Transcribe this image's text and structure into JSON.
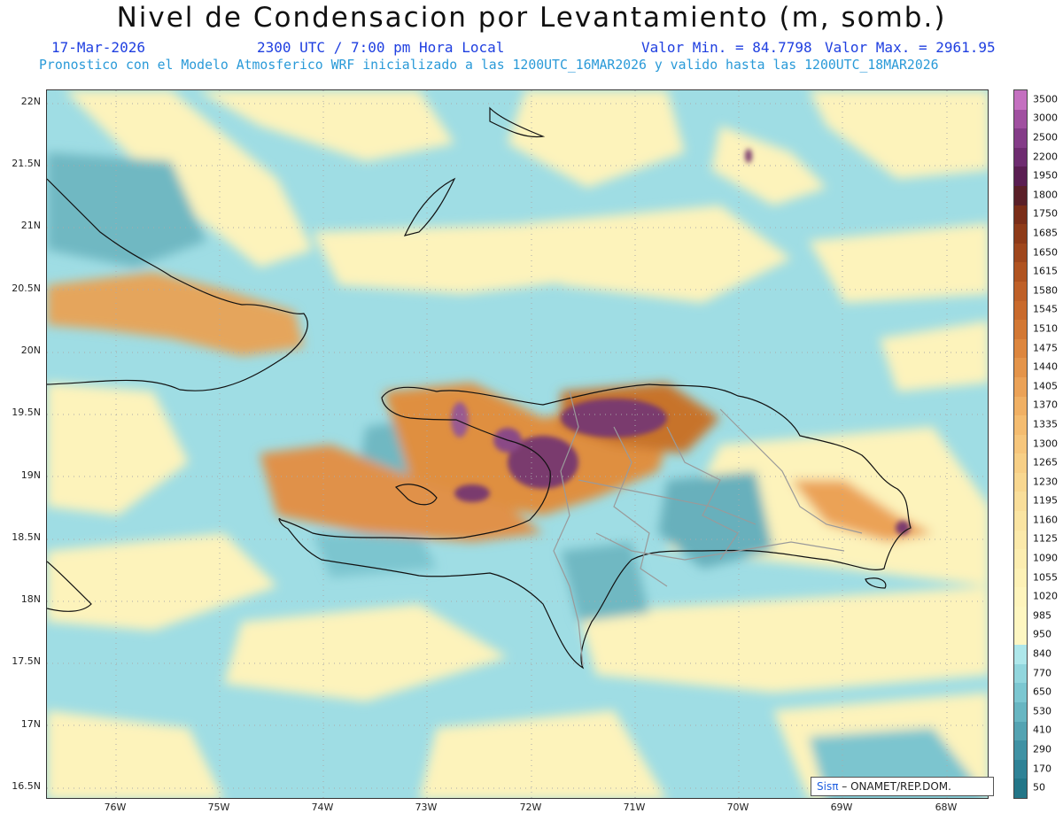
{
  "header": {
    "title": "Nivel de Condensacion por Levantamiento (m, somb.)",
    "date": "17-Mar-2026",
    "time": "2300 UTC / 7:00 pm Hora Local",
    "min_label": "Valor Min. = 84.7798",
    "max_label": "Valor Max. = 2961.95",
    "description": "Pronostico con el Modelo Atmosferico WRF inicializado a las 1200UTC_16MAR2026 y valido hasta las  1200UTC_18MAR2026"
  },
  "axes": {
    "lat_labels": [
      "22N",
      "21.5N",
      "21N",
      "20.5N",
      "20N",
      "19.5N",
      "19N",
      "18.5N",
      "18N",
      "17.5N",
      "17N",
      "16.5N"
    ],
    "lon_labels": [
      "76W",
      "75W",
      "74W",
      "73W",
      "72W",
      "71W",
      "70W",
      "69W",
      "68W"
    ]
  },
  "colorbar": {
    "levels": [
      "3500",
      "3000",
      "2500",
      "2200",
      "1950",
      "1800",
      "1750",
      "1685",
      "1650",
      "1615",
      "1580",
      "1545",
      "1510",
      "1475",
      "1440",
      "1405",
      "1370",
      "1335",
      "1300",
      "1265",
      "1230",
      "1195",
      "1160",
      "1125",
      "1090",
      "1055",
      "1020",
      "985",
      "950",
      "840",
      "770",
      "650",
      "530",
      "410",
      "290",
      "170",
      "50"
    ],
    "colors": [
      "#c470c0",
      "#a050a0",
      "#843c88",
      "#6e2c70",
      "#5a1e52",
      "#5a1f28",
      "#7a2d18",
      "#8e3a18",
      "#9f461c",
      "#b05320",
      "#bf6028",
      "#c96a2c",
      "#d37834",
      "#dd863e",
      "#e4944a",
      "#eba257",
      "#f0b064",
      "#f4bc70",
      "#f6c67c",
      "#f7cf86",
      "#f8d790",
      "#f9de9a",
      "#fae4a2",
      "#fbe9aa",
      "#fcedb0",
      "#fdf1b6",
      "#fef4bc",
      "#fef6c0",
      "#fdf6c2",
      "#aee7ea",
      "#92d6dd",
      "#7cc7d1",
      "#68b6c2",
      "#54a3b2",
      "#4092a4",
      "#2f8296",
      "#237688"
    ]
  },
  "credit": {
    "sis": "Sisπ",
    "org": " – ONAMET/REP.DOM."
  }
}
